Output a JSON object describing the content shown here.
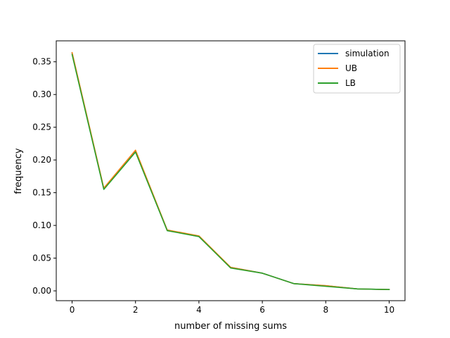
{
  "chart_data": {
    "type": "line",
    "title": "",
    "xlabel": "number of missing sums",
    "ylabel": "frequency",
    "xlim": [
      -0.5,
      10.5
    ],
    "ylim": [
      -0.015,
      0.382
    ],
    "x_ticks": [
      0,
      2,
      4,
      6,
      8,
      10
    ],
    "x_tick_labels": [
      "0",
      "2",
      "4",
      "6",
      "8",
      "10"
    ],
    "y_ticks": [
      0.0,
      0.05,
      0.1,
      0.15,
      0.2,
      0.25,
      0.3,
      0.35
    ],
    "y_tick_labels": [
      "0.00",
      "0.05",
      "0.10",
      "0.15",
      "0.20",
      "0.25",
      "0.30",
      "0.35"
    ],
    "grid": false,
    "legend_position": "top-right",
    "x": [
      0,
      1,
      2,
      3,
      4,
      5,
      6,
      7,
      8,
      9,
      10
    ],
    "series": [
      {
        "name": "simulation",
        "color": "#1f77b4",
        "values": [
          0.363,
          0.156,
          0.213,
          0.093,
          0.083,
          0.036,
          0.027,
          0.011,
          0.008,
          0.003,
          0.002
        ]
      },
      {
        "name": "UB",
        "color": "#ff7f0e",
        "values": [
          0.364,
          0.157,
          0.215,
          0.093,
          0.084,
          0.036,
          0.027,
          0.011,
          0.008,
          0.003,
          0.002
        ]
      },
      {
        "name": "LB",
        "color": "#2ca02c",
        "values": [
          0.361,
          0.155,
          0.212,
          0.092,
          0.083,
          0.035,
          0.027,
          0.011,
          0.007,
          0.003,
          0.002
        ]
      }
    ]
  }
}
